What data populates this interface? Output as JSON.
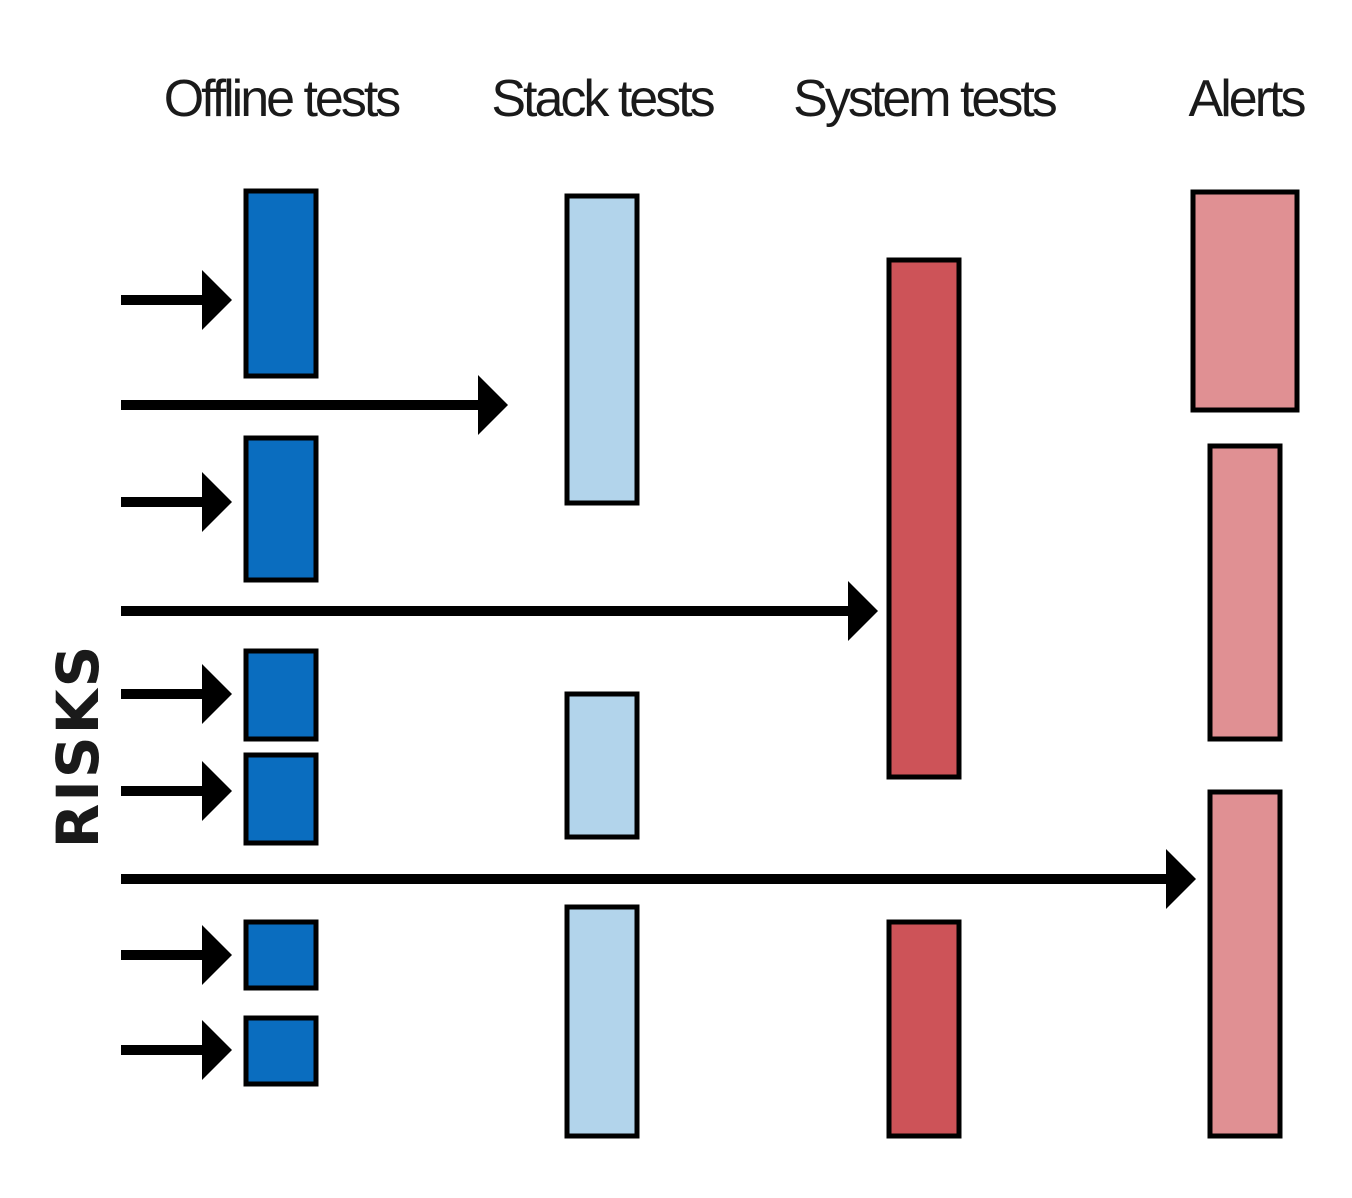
{
  "columns": [
    {
      "id": "offline",
      "title": "Offline tests",
      "color": "#0a6dbf"
    },
    {
      "id": "stack",
      "title": "Stack tests",
      "color": "#b2d4eb"
    },
    {
      "id": "system",
      "title": "System tests",
      "color": "#cd5358"
    },
    {
      "id": "alerts",
      "title": "Alerts",
      "color": "#e09093"
    }
  ],
  "axis_label": "RISKS"
}
